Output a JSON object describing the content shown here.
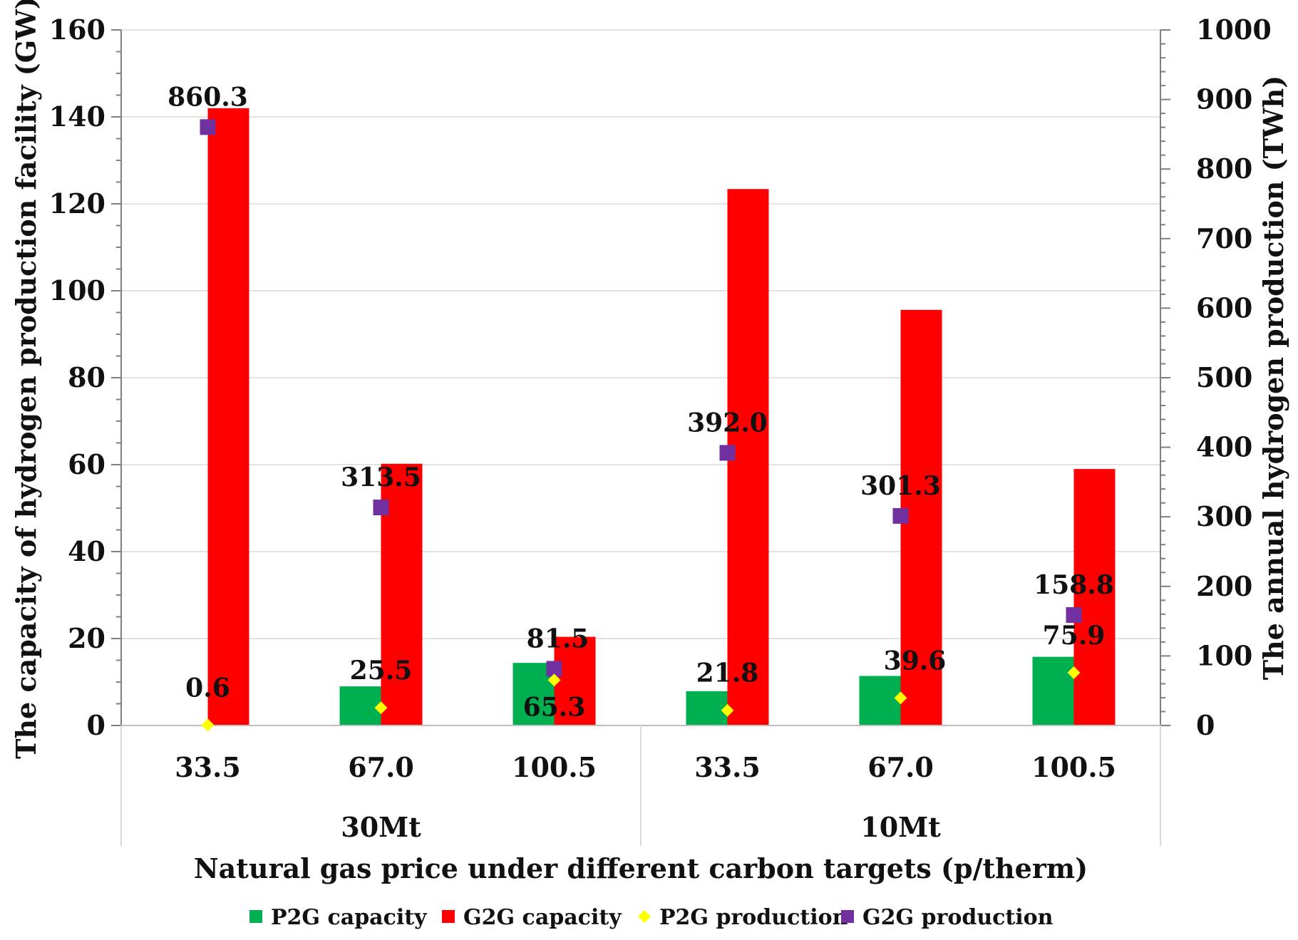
{
  "chart_data": {
    "type": "bar",
    "xlabel": "Natural gas price under different carbon targets (p/therm)",
    "ylabel": "The capacity of hydrogen production facility (GW)",
    "y2label": "The annual hydrogen production (TWh)",
    "ylim": [
      0,
      160
    ],
    "y2lim": [
      0,
      1000
    ],
    "yticks": [
      "0",
      "20",
      "40",
      "60",
      "80",
      "100",
      "120",
      "140",
      "160"
    ],
    "y2ticks": [
      "0",
      "100",
      "200",
      "300",
      "400",
      "500",
      "600",
      "700",
      "800",
      "900",
      "1000"
    ],
    "grid": true,
    "groups": [
      {
        "label": "30Mt",
        "categories": [
          "33.5",
          "67.0",
          "100.5"
        ]
      },
      {
        "label": "10Mt",
        "categories": [
          "33.5",
          "67.0",
          "100.5"
        ]
      }
    ],
    "series": [
      {
        "name": "P2G capacity",
        "kind": "bar",
        "axis": "left",
        "color": "#00b050",
        "values": [
          0,
          9.0,
          14.4,
          7.9,
          11.4,
          15.8
        ]
      },
      {
        "name": "G2G capacity",
        "kind": "bar",
        "axis": "left",
        "color": "#ff0000",
        "values": [
          142.0,
          60.2,
          20.4,
          123.4,
          95.6,
          59.0
        ]
      },
      {
        "name": "P2G production",
        "kind": "marker",
        "axis": "right",
        "color": "#ffff00",
        "values": [
          0.6,
          25.5,
          65.3,
          21.8,
          39.6,
          75.9
        ],
        "labels": [
          "0.6",
          "25.5",
          "65.3",
          "21.8",
          "39.6",
          "75.9"
        ]
      },
      {
        "name": "G2G production",
        "kind": "marker",
        "axis": "right",
        "color": "#7030a0",
        "values": [
          860.3,
          313.5,
          81.5,
          392.0,
          301.3,
          158.8
        ],
        "labels": [
          "860.3",
          "313.5",
          "81.5",
          "392.0",
          "301.3",
          "158.8"
        ]
      }
    ]
  }
}
